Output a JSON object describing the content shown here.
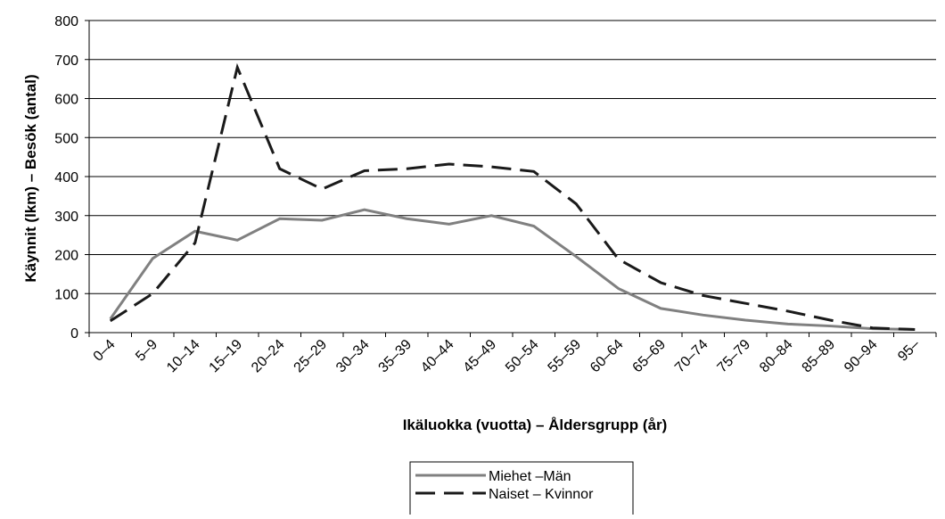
{
  "chart_data": {
    "type": "line",
    "x_label": "Ikäluokka (vuotta) – Åldersgrupp (år)",
    "y_label": "Käynnit (lkm) – Besök (antal)",
    "categories": [
      "0–4",
      "5–9",
      "10–14",
      "15–19",
      "20–24",
      "25–29",
      "30–34",
      "35–39",
      "40–44",
      "45–49",
      "50–54",
      "55–59",
      "60–64",
      "65–69",
      "70–74",
      "75–79",
      "80–84",
      "85–89",
      "90–94",
      "95–"
    ],
    "series": [
      {
        "name": "Miehet –Män",
        "color": "#808080",
        "dash": false,
        "values": [
          35,
          190,
          260,
          237,
          292,
          288,
          315,
          292,
          278,
          300,
          273,
          195,
          113,
          62,
          45,
          32,
          22,
          17,
          10,
          8
        ]
      },
      {
        "name": "Naiset – Kvinnor",
        "color": "#1a1a1a",
        "dash": true,
        "values": [
          30,
          100,
          230,
          680,
          420,
          368,
          415,
          420,
          432,
          425,
          413,
          330,
          188,
          128,
          95,
          75,
          55,
          32,
          12,
          8
        ]
      }
    ],
    "ylim": [
      0,
      800
    ],
    "yticks": [
      0,
      100,
      200,
      300,
      400,
      500,
      600,
      700,
      800
    ],
    "grid": true,
    "legend": "bottom"
  }
}
